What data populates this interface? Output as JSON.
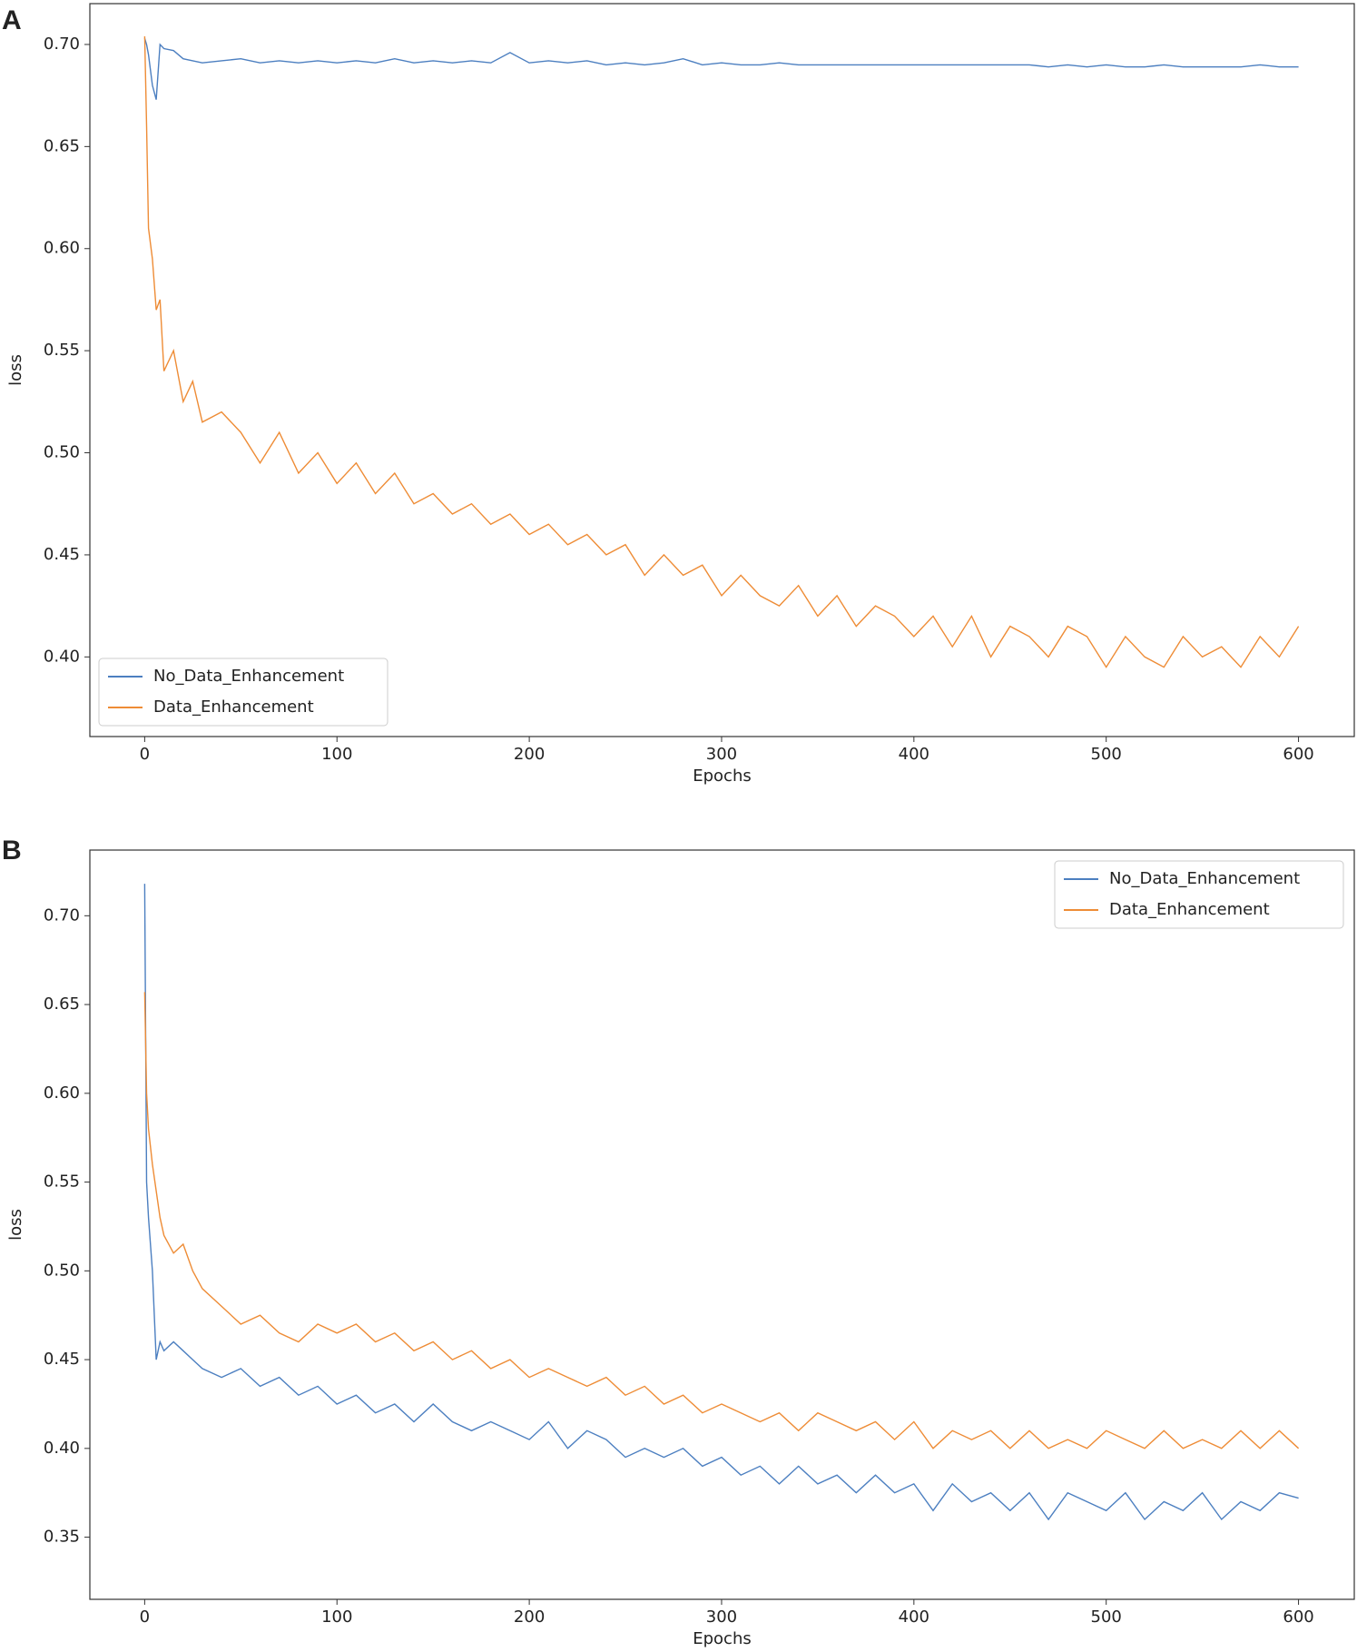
{
  "chart_data": [
    {
      "type": "line",
      "panel_label": "A",
      "xlabel": "Epochs",
      "ylabel": "loss",
      "xlim": [
        -28.5,
        629
      ],
      "ylim": [
        0.361,
        0.72
      ],
      "xticks": [
        0,
        100,
        200,
        300,
        400,
        500,
        600
      ],
      "yticks": [
        {
          "value": 0.4,
          "label": "0.40"
        },
        0.45,
        {
          "value": 0.5,
          "label": "0.50"
        },
        0.55,
        {
          "value": 0.6,
          "label": "0.60"
        },
        0.65,
        {
          "value": 0.7,
          "label": "0.70"
        }
      ],
      "legend": "lower left",
      "x": [
        0,
        1,
        2,
        4,
        6,
        8,
        10,
        15,
        20,
        25,
        30,
        40,
        50,
        60,
        70,
        80,
        90,
        100,
        110,
        120,
        130,
        140,
        150,
        160,
        170,
        180,
        190,
        200,
        210,
        220,
        230,
        240,
        250,
        260,
        270,
        280,
        290,
        300,
        310,
        320,
        330,
        340,
        350,
        360,
        370,
        380,
        390,
        400,
        410,
        420,
        430,
        440,
        450,
        460,
        470,
        480,
        490,
        500,
        510,
        520,
        530,
        540,
        550,
        560,
        570,
        580,
        590,
        600
      ],
      "series": [
        {
          "name": "No_Data_Enhancement",
          "color": "#4c7fc0",
          "values": [
            0.703,
            0.7,
            0.695,
            0.68,
            0.673,
            0.7,
            0.698,
            0.697,
            0.693,
            0.692,
            0.691,
            0.692,
            0.693,
            0.691,
            0.692,
            0.691,
            0.692,
            0.691,
            0.692,
            0.691,
            0.693,
            0.691,
            0.692,
            0.691,
            0.692,
            0.691,
            0.696,
            0.691,
            0.692,
            0.691,
            0.692,
            0.69,
            0.691,
            0.69,
            0.691,
            0.693,
            0.69,
            0.691,
            0.69,
            0.69,
            0.691,
            0.69,
            0.69,
            0.69,
            0.69,
            0.69,
            0.69,
            0.69,
            0.69,
            0.69,
            0.69,
            0.69,
            0.69,
            0.69,
            0.689,
            0.69,
            0.689,
            0.69,
            0.689,
            0.689,
            0.69,
            0.689,
            0.689,
            0.689,
            0.689,
            0.69,
            0.689,
            0.689
          ]
        },
        {
          "name": "Data_Enhancement",
          "color": "#ee8c36",
          "values": [
            0.704,
            0.66,
            0.61,
            0.595,
            0.57,
            0.575,
            0.54,
            0.55,
            0.525,
            0.535,
            0.515,
            0.52,
            0.51,
            0.495,
            0.51,
            0.49,
            0.5,
            0.485,
            0.495,
            0.48,
            0.49,
            0.475,
            0.48,
            0.47,
            0.475,
            0.465,
            0.47,
            0.46,
            0.465,
            0.455,
            0.46,
            0.45,
            0.455,
            0.44,
            0.45,
            0.44,
            0.445,
            0.43,
            0.44,
            0.43,
            0.425,
            0.435,
            0.42,
            0.43,
            0.415,
            0.425,
            0.42,
            0.41,
            0.42,
            0.405,
            0.42,
            0.4,
            0.415,
            0.41,
            0.4,
            0.415,
            0.41,
            0.395,
            0.41,
            0.4,
            0.395,
            0.41,
            0.4,
            0.405,
            0.395,
            0.41,
            0.4,
            0.415
          ]
        }
      ]
    },
    {
      "type": "line",
      "panel_label": "B",
      "xlabel": "Epochs",
      "ylabel": "loss",
      "xlim": [
        -28.5,
        629
      ],
      "ylim": [
        0.315,
        0.737
      ],
      "xticks": [
        0,
        100,
        200,
        300,
        400,
        500,
        600
      ],
      "yticks": [
        0.35,
        {
          "value": 0.4,
          "label": "0.40"
        },
        0.45,
        {
          "value": 0.5,
          "label": "0.50"
        },
        0.55,
        {
          "value": 0.6,
          "label": "0.60"
        },
        0.65,
        {
          "value": 0.7,
          "label": "0.70"
        }
      ],
      "legend": "upper right",
      "x": [
        0,
        1,
        2,
        4,
        6,
        8,
        10,
        15,
        20,
        25,
        30,
        40,
        50,
        60,
        70,
        80,
        90,
        100,
        110,
        120,
        130,
        140,
        150,
        160,
        170,
        180,
        190,
        200,
        210,
        220,
        230,
        240,
        250,
        260,
        270,
        280,
        290,
        300,
        310,
        320,
        330,
        340,
        350,
        360,
        370,
        380,
        390,
        400,
        410,
        420,
        430,
        440,
        450,
        460,
        470,
        480,
        490,
        500,
        510,
        520,
        530,
        540,
        550,
        560,
        570,
        580,
        590,
        600
      ],
      "series": [
        {
          "name": "No_Data_Enhancement",
          "color": "#4c7fc0",
          "values": [
            0.718,
            0.55,
            0.53,
            0.5,
            0.45,
            0.46,
            0.455,
            0.46,
            0.455,
            0.45,
            0.445,
            0.44,
            0.445,
            0.435,
            0.44,
            0.43,
            0.435,
            0.425,
            0.43,
            0.42,
            0.425,
            0.415,
            0.425,
            0.415,
            0.41,
            0.415,
            0.41,
            0.405,
            0.415,
            0.4,
            0.41,
            0.405,
            0.395,
            0.4,
            0.395,
            0.4,
            0.39,
            0.395,
            0.385,
            0.39,
            0.38,
            0.39,
            0.38,
            0.385,
            0.375,
            0.385,
            0.375,
            0.38,
            0.365,
            0.38,
            0.37,
            0.375,
            0.365,
            0.375,
            0.36,
            0.375,
            0.37,
            0.365,
            0.375,
            0.36,
            0.37,
            0.365,
            0.375,
            0.36,
            0.37,
            0.365,
            0.375,
            0.372
          ]
        },
        {
          "name": "Data_Enhancement",
          "color": "#ee8c36",
          "values": [
            0.657,
            0.6,
            0.58,
            0.56,
            0.545,
            0.53,
            0.52,
            0.51,
            0.515,
            0.5,
            0.49,
            0.48,
            0.47,
            0.475,
            0.465,
            0.46,
            0.47,
            0.465,
            0.47,
            0.46,
            0.465,
            0.455,
            0.46,
            0.45,
            0.455,
            0.445,
            0.45,
            0.44,
            0.445,
            0.44,
            0.435,
            0.44,
            0.43,
            0.435,
            0.425,
            0.43,
            0.42,
            0.425,
            0.42,
            0.415,
            0.42,
            0.41,
            0.42,
            0.415,
            0.41,
            0.415,
            0.405,
            0.415,
            0.4,
            0.41,
            0.405,
            0.41,
            0.4,
            0.41,
            0.4,
            0.405,
            0.4,
            0.41,
            0.405,
            0.4,
            0.41,
            0.4,
            0.405,
            0.4,
            0.41,
            0.4,
            0.41,
            0.4
          ]
        }
      ]
    }
  ]
}
